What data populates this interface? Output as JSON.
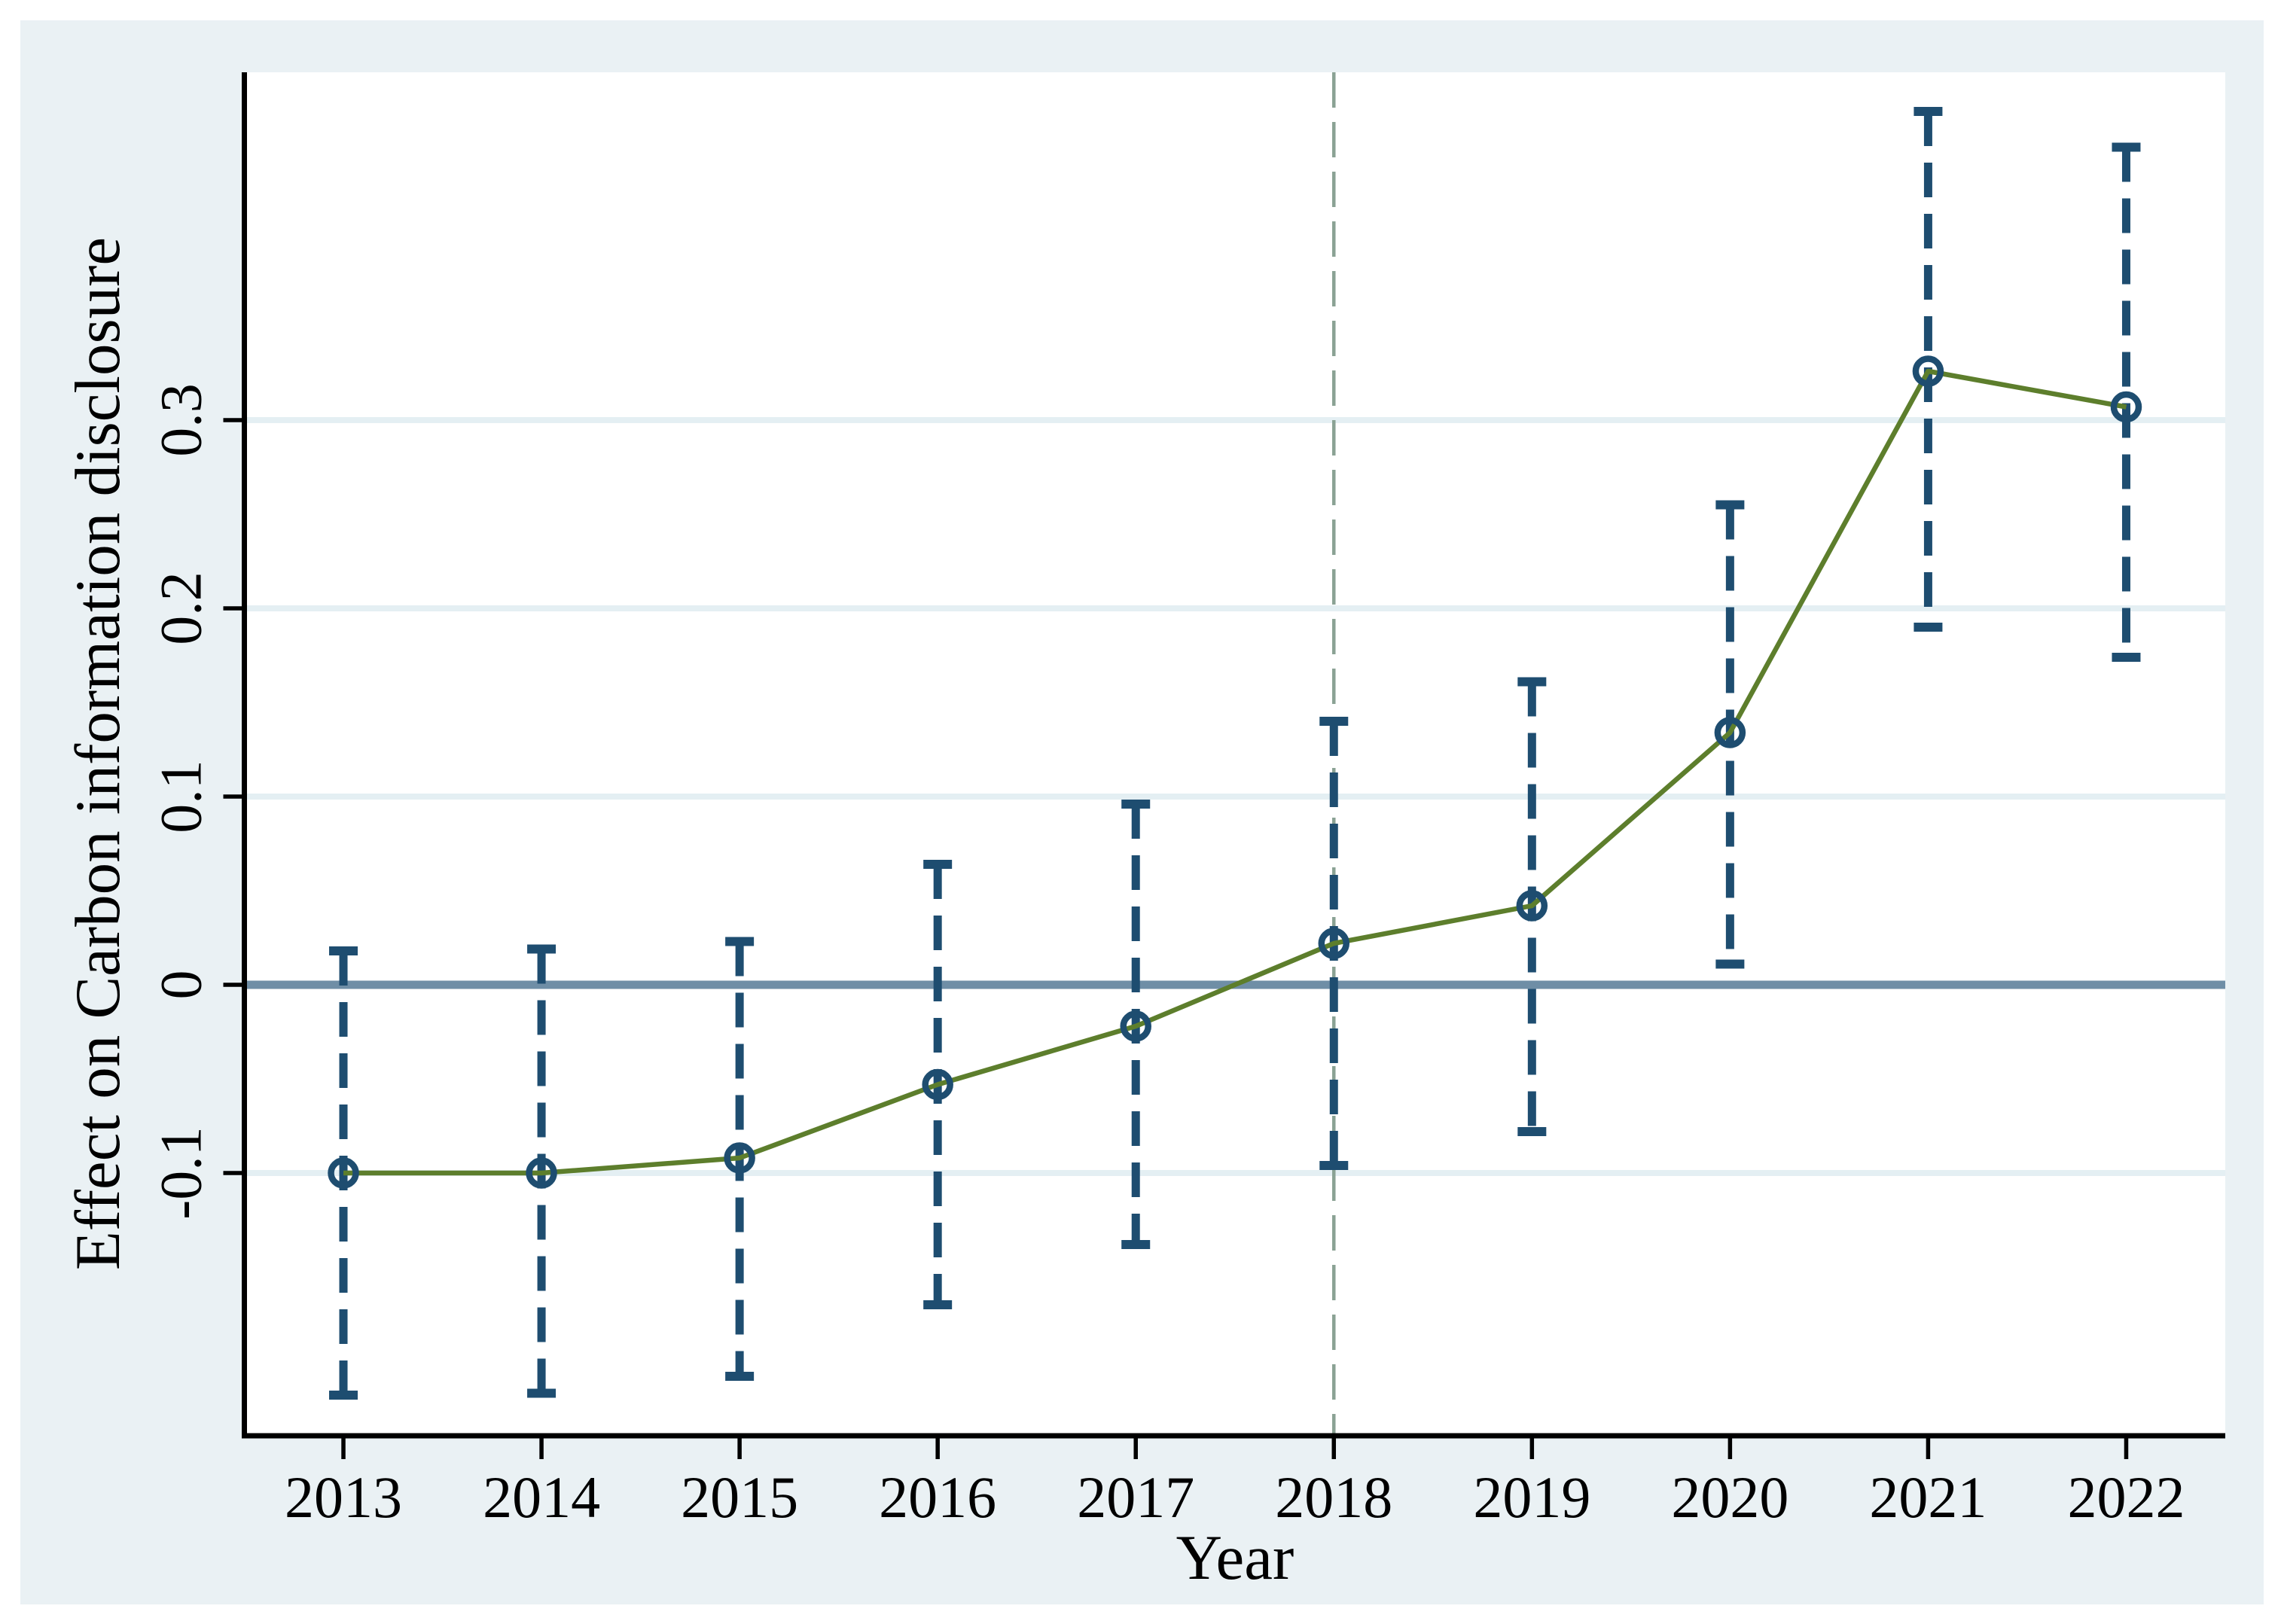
{
  "chart_data": {
    "type": "line",
    "title": "",
    "xlabel": "Year",
    "ylabel": "Effect on Carbon information disclosure",
    "x": [
      2013,
      2014,
      2015,
      2016,
      2017,
      2018,
      2019,
      2020,
      2021,
      2022
    ],
    "xtick_labels": [
      "2013",
      "2014",
      "2015",
      "2016",
      "2017",
      "2018",
      "2019",
      "2020",
      "2021",
      "2022"
    ],
    "series": [
      {
        "name": "point-estimate",
        "values": [
          -0.1,
          -0.1,
          -0.092,
          -0.053,
          -0.022,
          0.022,
          0.042,
          0.134,
          0.326,
          0.307
        ],
        "marker": "hollow-circle"
      }
    ],
    "ci_low": [
      -0.218,
      -0.217,
      -0.208,
      -0.17,
      -0.138,
      -0.096,
      -0.078,
      0.011,
      0.19,
      0.174
    ],
    "ci_high": [
      0.018,
      0.019,
      0.023,
      0.064,
      0.096,
      0.14,
      0.161,
      0.255,
      0.464,
      0.445
    ],
    "yticks": [
      -0.1,
      0,
      0.1,
      0.2,
      0.3
    ],
    "ytick_labels": [
      "-0.1",
      "0",
      "0.1",
      "0.2",
      "0.3"
    ],
    "ylim": [
      -0.24,
      0.485
    ],
    "xlim": [
      2012.5,
      2022.5
    ],
    "grid": true,
    "gridlines_at": [
      -0.1,
      0.1,
      0.2,
      0.3
    ],
    "reference_lines": {
      "horizontal_zero": 0,
      "vertical_event_year": 2018
    },
    "legend": "none",
    "colors": {
      "marker_and_ci": "#1e4d70",
      "series_line": "#5d7e2c",
      "zero_line": "#6f8ea6",
      "event_year_line": "#8aa294",
      "gridline": "#e4eff3",
      "graph_region_bg": "#eaf1f4",
      "plot_area_bg": "#ffffff",
      "axis": "#000000",
      "text": "#000000"
    }
  }
}
